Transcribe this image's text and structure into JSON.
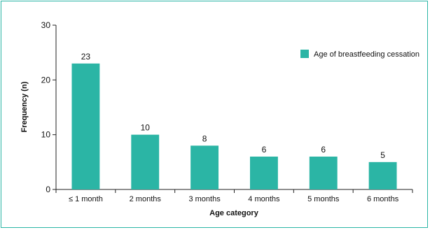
{
  "chart_data": {
    "type": "bar",
    "categories": [
      "≤ 1 month",
      "2 months",
      "3 months",
      "4 months",
      "5 months",
      "6 months"
    ],
    "series": [
      {
        "name": "Age of breastfeeding cessation",
        "values": [
          23,
          10,
          8,
          6,
          6,
          5
        ],
        "color": "#2bb5a5"
      }
    ],
    "data_labels": [
      "23",
      "10",
      "8",
      "6",
      "6",
      "5"
    ],
    "xlabel": "Age category",
    "ylabel": "Frequency (n)",
    "ylim": [
      0,
      30
    ],
    "yticks": [
      0,
      10,
      20,
      30
    ],
    "grid": false,
    "legend_position": "top-right",
    "frame_color": "#2bb5a5"
  }
}
